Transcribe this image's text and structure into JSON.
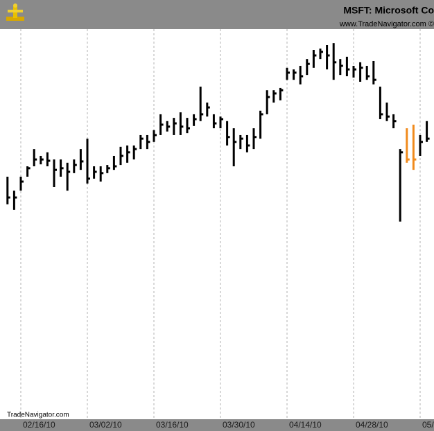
{
  "chart_data": {
    "type": "ohlc",
    "title": "MSFT:  Microsoft Co",
    "subtitle": "www.TradeNavigator.com ©",
    "watermark": "TradeNavigator.com",
    "categories": [
      null,
      null,
      "02/16/10",
      null,
      null,
      null,
      null,
      null,
      null,
      null,
      null,
      null,
      "03/02/10",
      null,
      null,
      null,
      null,
      null,
      null,
      null,
      null,
      null,
      "03/16/10",
      null,
      null,
      null,
      null,
      null,
      null,
      null,
      null,
      null,
      "03/30/10",
      null,
      null,
      null,
      null,
      null,
      null,
      null,
      null,
      null,
      "04/14/10",
      null,
      null,
      null,
      null,
      null,
      null,
      null,
      null,
      null,
      "04/28/10",
      null,
      null,
      null,
      null,
      null,
      null,
      null,
      null,
      null,
      "05/",
      null
    ],
    "high": [
      27.46,
      27.03,
      27.46,
      27.78,
      28.31,
      28.1,
      28.21,
      27.99,
      27.99,
      27.89,
      27.99,
      28.31,
      28.63,
      27.78,
      27.78,
      27.82,
      28.1,
      28.38,
      28.42,
      28.42,
      28.74,
      28.74,
      28.89,
      29.38,
      29.17,
      29.27,
      29.44,
      29.27,
      29.38,
      30.23,
      29.74,
      29.38,
      29.31,
      29.17,
      28.95,
      28.74,
      28.74,
      28.95,
      29.49,
      30.12,
      30.12,
      30.19,
      30.81,
      30.76,
      30.87,
      31.08,
      31.36,
      31.4,
      31.51,
      31.57,
      31.08,
      31.15,
      30.87,
      30.98,
      30.87,
      31.02,
      30.23,
      29.74,
      29.38,
      28.31,
      28.95,
      29.06,
      28.74,
      29.17
    ],
    "low": [
      26.61,
      26.44,
      27.03,
      27.46,
      27.78,
      27.84,
      27.78,
      27.14,
      27.46,
      27.03,
      27.57,
      27.67,
      27.25,
      27.4,
      27.31,
      27.57,
      27.67,
      27.82,
      27.89,
      27.99,
      28.31,
      28.31,
      28.53,
      28.74,
      28.85,
      28.74,
      28.74,
      28.8,
      29.02,
      29.17,
      29.31,
      28.95,
      28.95,
      28.42,
      27.78,
      28.31,
      28.21,
      28.31,
      28.63,
      29.38,
      29.74,
      29.81,
      30.44,
      30.44,
      30.3,
      30.59,
      30.81,
      31.08,
      30.76,
      30.44,
      30.59,
      30.55,
      30.51,
      30.38,
      30.44,
      30.3,
      29.23,
      29.17,
      28.95,
      26.08,
      27.89,
      27.67,
      28.1,
      28.53
    ],
    "close": [
      26.82,
      26.82,
      27.31,
      27.72,
      27.99,
      27.99,
      27.95,
      27.67,
      27.72,
      27.61,
      27.82,
      27.93,
      27.4,
      27.61,
      27.57,
      27.72,
      27.78,
      28.1,
      28.21,
      28.31,
      28.63,
      28.53,
      28.74,
      29.06,
      29.0,
      29.1,
      29.0,
      28.95,
      29.23,
      29.38,
      29.59,
      29.1,
      29.23,
      28.68,
      28.53,
      28.63,
      28.42,
      28.68,
      29.38,
      29.91,
      30.02,
      30.12,
      30.66,
      30.66,
      30.55,
      30.93,
      31.19,
      31.3,
      31.19,
      30.98,
      30.87,
      30.76,
      30.76,
      30.81,
      30.55,
      30.44,
      29.38,
      29.31,
      29.17,
      28.21,
      27.99,
      27.99,
      28.53,
      28.63
    ],
    "colors": [
      "#000000",
      "#000000",
      "#000000",
      "#000000",
      "#000000",
      "#000000",
      "#000000",
      "#000000",
      "#000000",
      "#000000",
      "#000000",
      "#000000",
      "#000000",
      "#000000",
      "#000000",
      "#000000",
      "#000000",
      "#000000",
      "#000000",
      "#000000",
      "#000000",
      "#000000",
      "#000000",
      "#000000",
      "#000000",
      "#000000",
      "#000000",
      "#000000",
      "#000000",
      "#000000",
      "#000000",
      "#000000",
      "#000000",
      "#000000",
      "#000000",
      "#000000",
      "#000000",
      "#000000",
      "#000000",
      "#000000",
      "#000000",
      "#000000",
      "#000000",
      "#000000",
      "#000000",
      "#000000",
      "#000000",
      "#000000",
      "#000000",
      "#000000",
      "#000000",
      "#000000",
      "#000000",
      "#000000",
      "#000000",
      "#000000",
      "#000000",
      "#000000",
      "#000000",
      "#000000",
      "#f08a1c",
      "#f08a1c",
      "#000000",
      "#000000"
    ],
    "ylim": [
      20,
      32
    ],
    "grid": true
  }
}
